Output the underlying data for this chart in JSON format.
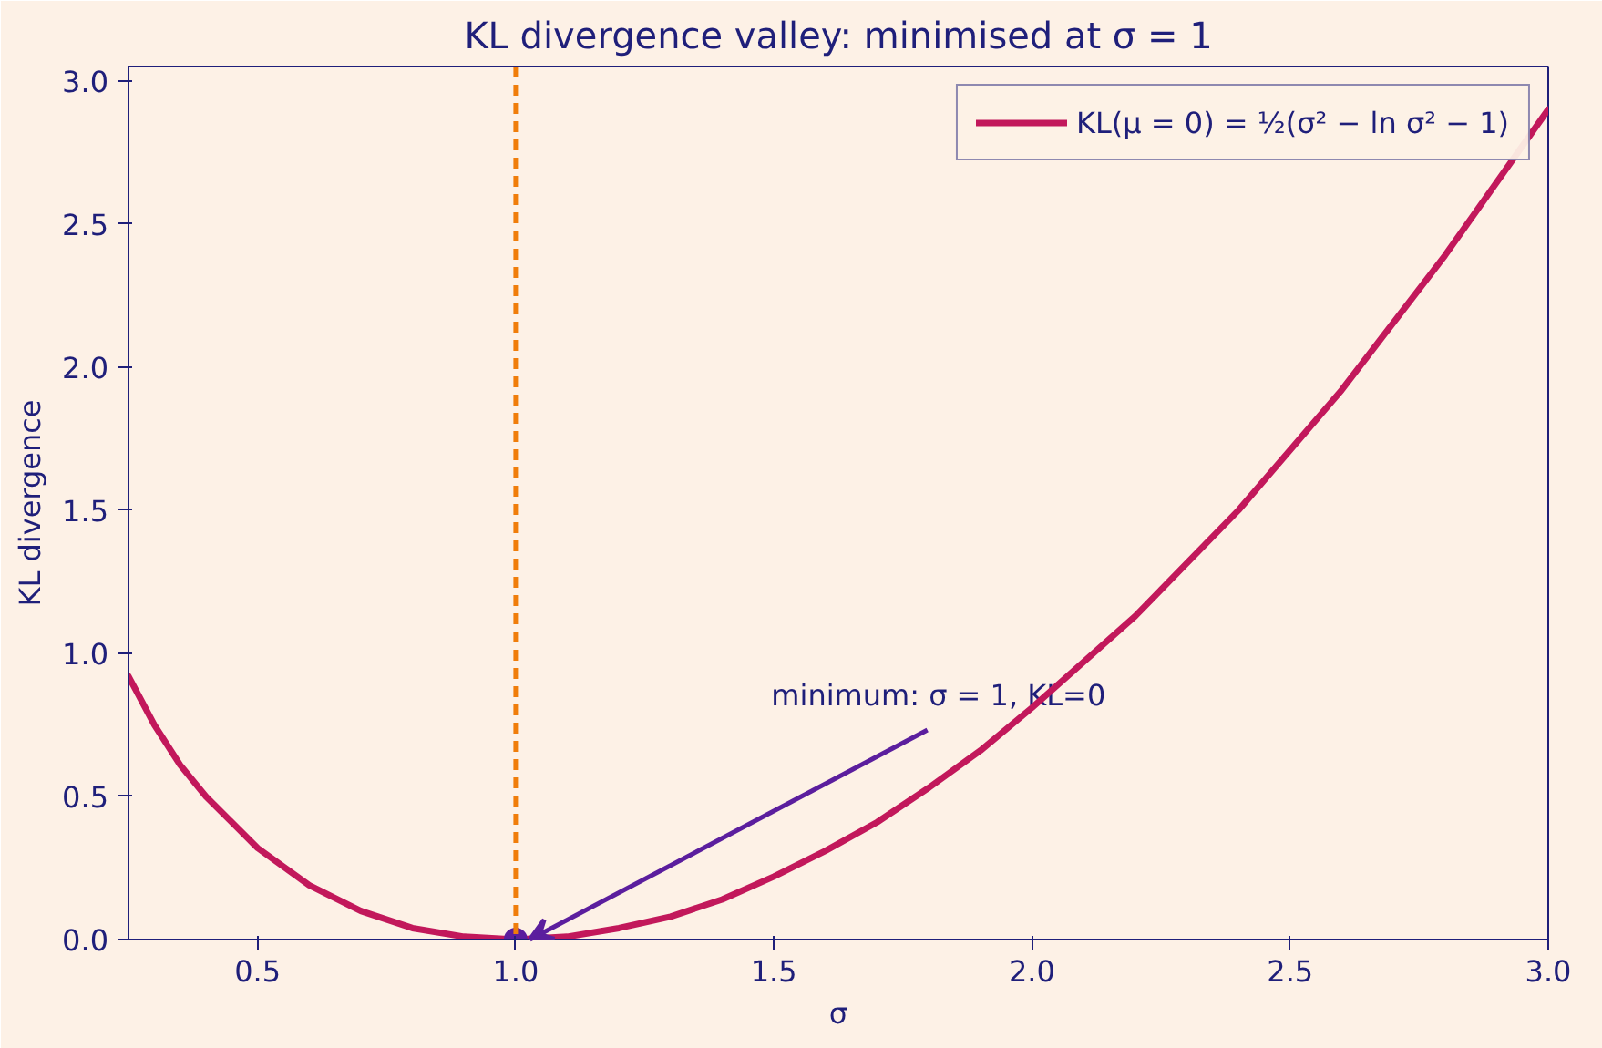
{
  "chart_data": {
    "type": "line",
    "title": "KL divergence valley: minimised at σ = 1",
    "xlabel": "σ",
    "ylabel": "KL divergence",
    "xlim": [
      0.25,
      3.0
    ],
    "ylim": [
      0,
      3.05
    ],
    "xticks": [
      0.5,
      {
        "value": 1,
        "label": "1.0"
      },
      1.5,
      {
        "value": 2,
        "label": "2.0"
      },
      2.5,
      {
        "value": 3,
        "label": "3.0"
      }
    ],
    "yticks": [
      {
        "value": 0,
        "label": "0.0"
      },
      0.5,
      {
        "value": 1,
        "label": "1.0"
      },
      1.5,
      {
        "value": 2,
        "label": "2.0"
      },
      2.5,
      {
        "value": 3,
        "label": "3.0"
      }
    ],
    "grid": false,
    "legend": "top right",
    "marker": "none",
    "line_style": "solid",
    "series": [
      {
        "name": "KL(μ = 0) = ½(σ² − ln σ² − 1)",
        "color": "#c2185b",
        "x": [
          0.25,
          0.3,
          0.35,
          0.4,
          0.5,
          0.6,
          0.7,
          0.8,
          0.9,
          1.0,
          1.1,
          1.2,
          1.3,
          1.4,
          1.5,
          1.6,
          1.7,
          1.8,
          1.9,
          2.0,
          2.2,
          2.4,
          2.6,
          2.8,
          3.0
        ],
        "values": [
          0.92,
          0.75,
          0.61,
          0.5,
          0.32,
          0.19,
          0.1,
          0.04,
          0.01,
          0,
          0.01,
          0.04,
          0.08,
          0.14,
          0.22,
          0.31,
          0.41,
          0.53,
          0.66,
          0.81,
          1.13,
          1.5,
          1.92,
          2.39,
          2.9
        ]
      },
      {
        "type": "scatter",
        "marker": "circle",
        "color": "#5b1e9e",
        "x": [
          1.0
        ],
        "values": [
          0
        ]
      }
    ],
    "ref_lines": [
      {
        "axis": "x",
        "value": 1.0,
        "color": "#f07d0a",
        "line_style": "dashed"
      }
    ],
    "annotations": [
      {
        "text": "minimum: σ = 1, KL=0",
        "x": 1.0,
        "y": 0
      }
    ]
  }
}
